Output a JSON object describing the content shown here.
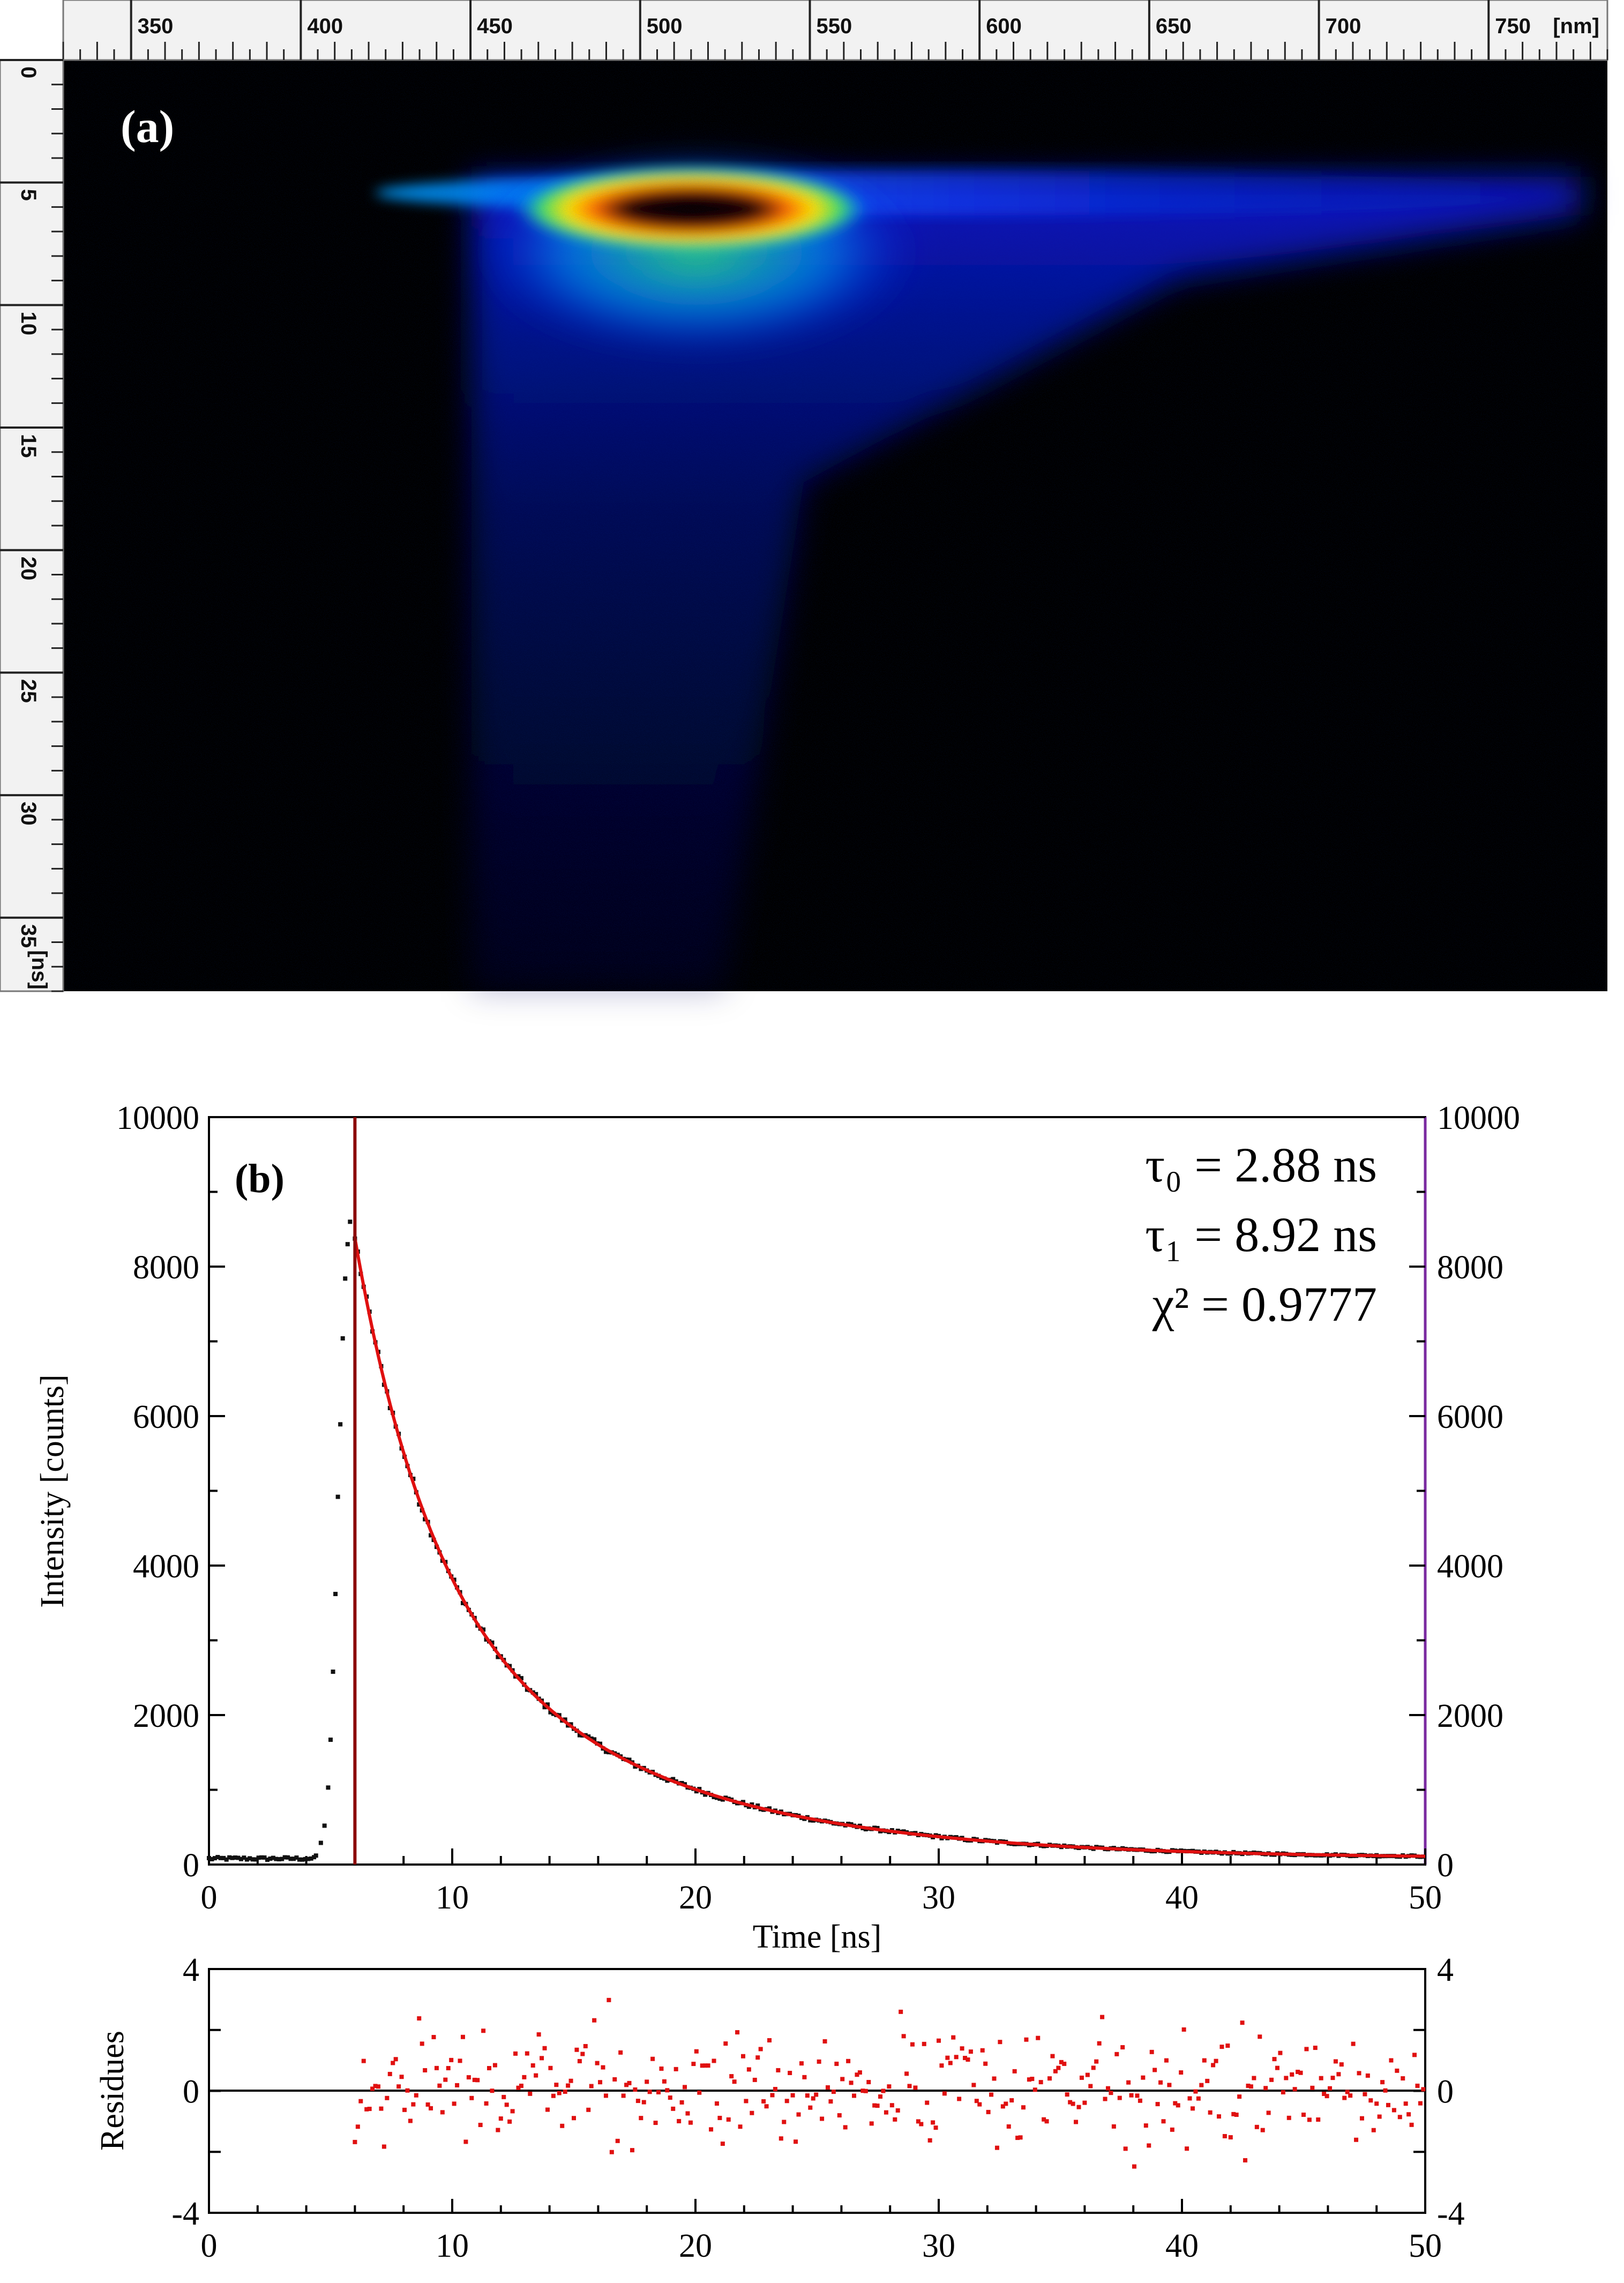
{
  "panel_a": {
    "label": "(a)",
    "x_unit": "[nm]",
    "y_unit": "[ns]",
    "x_ticks": [
      350,
      400,
      450,
      500,
      550,
      600,
      650,
      700,
      750
    ],
    "y_ticks": [
      0,
      5,
      10,
      15,
      20,
      25,
      30,
      35
    ],
    "colors": {
      "background": "#000000",
      "ruler": "#f2f2f2"
    }
  },
  "chart_data": [
    {
      "type": "heatmap",
      "x_range": [
        330,
        785
      ],
      "y_range": [
        0,
        38
      ],
      "features": {
        "onset_wavelength": 466,
        "peak_wavelength": 520,
        "peak_time": 5.5,
        "tail_end_wavelength": 790
      }
    },
    {
      "type": "scatter",
      "label": "(b)",
      "xlabel": "Time [ns]",
      "ylabel": "Intensity [counts]",
      "xlim": [
        0,
        50
      ],
      "ylim": [
        0,
        10000
      ],
      "x_ticks": [
        0,
        10,
        20,
        30,
        40,
        50
      ],
      "y_ticks": [
        0,
        2000,
        4000,
        6000,
        8000,
        10000
      ],
      "annotations": [
        "τ₀ = 2.88 ns",
        "τ₁ = 8.92 ns",
        "χ² = 0.9777"
      ],
      "marker_time": 6.0,
      "rise_points": [
        {
          "x": 4.4,
          "y": 120
        },
        {
          "x": 4.6,
          "y": 290
        },
        {
          "x": 4.75,
          "y": 520
        },
        {
          "x": 4.9,
          "y": 1030
        },
        {
          "x": 5.0,
          "y": 1670
        },
        {
          "x": 5.1,
          "y": 2580
        },
        {
          "x": 5.2,
          "y": 3620
        },
        {
          "x": 5.3,
          "y": 4920
        },
        {
          "x": 5.4,
          "y": 5890
        },
        {
          "x": 5.5,
          "y": 7040
        },
        {
          "x": 5.6,
          "y": 7840
        },
        {
          "x": 5.7,
          "y": 8300
        },
        {
          "x": 5.8,
          "y": 8600
        }
      ],
      "baseline": {
        "x_start": 0,
        "x_end": 4.4,
        "y": 80
      },
      "decay_model": {
        "t0": 6.0,
        "a0": 4000,
        "tau0": 2.88,
        "a1": 4300,
        "tau1": 8.92,
        "offset": 80
      },
      "colors": {
        "data": "#111111",
        "fit": "#e01010",
        "marker_line": "#8b0a0a",
        "right_axis": "#7a2aa0"
      }
    },
    {
      "type": "scatter",
      "ylabel": "Residues",
      "xlim": [
        0,
        50
      ],
      "ylim": [
        -4,
        4
      ],
      "x_ticks": [
        0,
        10,
        20,
        30,
        40,
        50
      ],
      "y_ticks": [
        -4,
        0,
        4
      ],
      "x_start": 6.0,
      "x_end": 50,
      "colors": {
        "points": "#e01010"
      }
    }
  ]
}
